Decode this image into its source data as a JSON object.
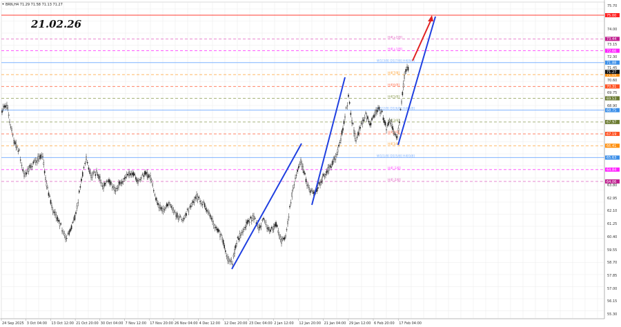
{
  "header": {
    "symbol_text": "BRN,H4  71.29 71.58 71.13 71.27",
    "date_stamp": "21.02.26"
  },
  "chart_data": {
    "type": "candlestick",
    "title": "BRN,H4",
    "ohlc_last": {
      "open": 71.29,
      "high": 71.58,
      "low": 71.13,
      "close": 71.27
    },
    "annotation": "21.02.26",
    "xlabel": "",
    "ylabel": "",
    "ylim": [
      55.3,
      75.9
    ],
    "grid": true,
    "y_ticks": [
      "75.70",
      "75.00",
      "74.00",
      "73.44",
      "73.15",
      "72.66",
      "72.30",
      "71.88",
      "71.45",
      "71.27",
      "71.09",
      "70.60",
      "70.31",
      "69.75",
      "69.53",
      "68.90",
      "68.75",
      "67.97",
      "67.19",
      "66.41",
      "65.63",
      "64.84",
      "64.06",
      "63.80",
      "62.95",
      "62.10",
      "61.25",
      "60.40",
      "59.55",
      "58.70",
      "57.85",
      "57.00",
      "56.15",
      "55.30"
    ],
    "x_ticks": [
      "24 Sep 2025",
      "3 Oct 04:00",
      "13 Oct 12:00",
      "21 Oct 20:00",
      "30 Oct 04:00",
      "7 Nov 12:00",
      "17 Nov 20:00",
      "26 Nov 04:00",
      "4 Dec 12:00",
      "12 Dec 20:00",
      "23 Dec 04:00",
      "2 Jan 12:00",
      "12 Jan 20:00",
      "21 Jan 04:00",
      "29 Jan 12:00",
      "6 Feb 20:00",
      "17 Feb 04:00"
    ],
    "series_close_approx": [
      {
        "x": "24 Sep 2025",
        "y": 69.2
      },
      {
        "x": "3 Oct 04:00",
        "y": 65.0
      },
      {
        "x": "13 Oct 12:00",
        "y": 61.0
      },
      {
        "x": "21 Oct 20:00",
        "y": 65.2
      },
      {
        "x": "30 Oct 04:00",
        "y": 64.5
      },
      {
        "x": "7 Nov 12:00",
        "y": 64.0
      },
      {
        "x": "17 Nov 20:00",
        "y": 63.0
      },
      {
        "x": "26 Nov 04:00",
        "y": 62.8
      },
      {
        "x": "4 Dec 12:00",
        "y": 62.5
      },
      {
        "x": "12 Dec 20:00",
        "y": 59.5
      },
      {
        "x": "23 Dec 04:00",
        "y": 61.8
      },
      {
        "x": "2 Jan 12:00",
        "y": 61.2
      },
      {
        "x": "12 Jan 20:00",
        "y": 65.6
      },
      {
        "x": "21 Jan 04:00",
        "y": 64.5
      },
      {
        "x": "29 Jan 12:00",
        "y": 69.0
      },
      {
        "x": "6 Feb 20:00",
        "y": 67.8
      },
      {
        "x": "17 Feb 04:00",
        "y": 71.27
      }
    ],
    "levels": [
      {
        "label": "",
        "price": 75.0,
        "color": "#ff3b30",
        "style": "solid",
        "axis_bg": "#ff2020"
      },
      {
        "label": "H4[+2/8]",
        "price": 73.44,
        "color": "#e060c0",
        "style": "dashed",
        "axis_bg": "#c02090"
      },
      {
        "label": "H4[+1/8]",
        "price": 72.66,
        "color": "#ff40ff",
        "style": "dashed",
        "axis_bg": "#ff20ff"
      },
      {
        "label": "W1[3/8] D1[7/8] H4[8/8]",
        "price": 71.88,
        "color": "#7fb2ff",
        "style": "solid",
        "axis_bg": "#3a8ee8"
      },
      {
        "label": "H4[7/8]",
        "price": 71.09,
        "color": "#ffa030",
        "style": "dashed",
        "axis_bg": "#ff9010"
      },
      {
        "label": "H4[6/8]",
        "price": 70.31,
        "color": "#ff7050",
        "style": "dashed",
        "axis_bg": "#ff5020"
      },
      {
        "label": "H4[5/8]",
        "price": 69.53,
        "color": "#8a9a50",
        "style": "dashed",
        "axis_bg": "#6a7a30"
      },
      {
        "label": "W1[2/8] D1[6/8] H4[4/8]",
        "price": 68.75,
        "color": "#7fb2ff",
        "style": "solid",
        "axis_bg": "#3a8ee8"
      },
      {
        "label": "H4[3/8]",
        "price": 67.97,
        "color": "#8a9a50",
        "style": "dashed",
        "axis_bg": "#6a7a30"
      },
      {
        "label": "H4[2/8]",
        "price": 67.19,
        "color": "#ff7050",
        "style": "dashed",
        "axis_bg": "#ff5020"
      },
      {
        "label": "H4[1/8]",
        "price": 66.41,
        "color": "#ffa030",
        "style": "dashed",
        "axis_bg": "#ff9010"
      },
      {
        "label": "W1[1/8] D1[5/8] H4[0/8]",
        "price": 65.63,
        "color": "#7fb2ff",
        "style": "solid",
        "axis_bg": "#3a8ee8"
      },
      {
        "label": "H4[-1/8]",
        "price": 64.84,
        "color": "#ff40ff",
        "style": "dashed",
        "axis_bg": "#ff20ff"
      },
      {
        "label": "H4[-2/8]",
        "price": 64.06,
        "color": "#e060c0",
        "style": "dashed",
        "axis_bg": "#c02090"
      }
    ],
    "current_price": {
      "value": 71.27,
      "axis_bg": "#111111"
    },
    "trendlines": [
      {
        "color": "#1f3fe0",
        "from": {
          "x": "12 Dec 20:00",
          "y": 58.5
        },
        "to": {
          "x": "12 Jan 20:00",
          "y": 66.3
        }
      },
      {
        "color": "#1f3fe0",
        "from": {
          "x": "12 Jan 20:00",
          "y": 63.2
        },
        "to": {
          "x": "21 Jan 04:00",
          "y": 71.3
        }
      },
      {
        "color": "#1f3fe0",
        "from": {
          "x": "17 Feb 04:00",
          "y": 66.4
        },
        "to": {
          "x": "17 Feb 04:00+",
          "y": 75.0
        }
      },
      {
        "color": "#e02020",
        "from": {
          "x": "17 Feb 04:00",
          "y": 71.3
        },
        "to": {
          "x": "17 Feb 04:00+",
          "y": 75.0
        },
        "arrow": true
      }
    ]
  }
}
